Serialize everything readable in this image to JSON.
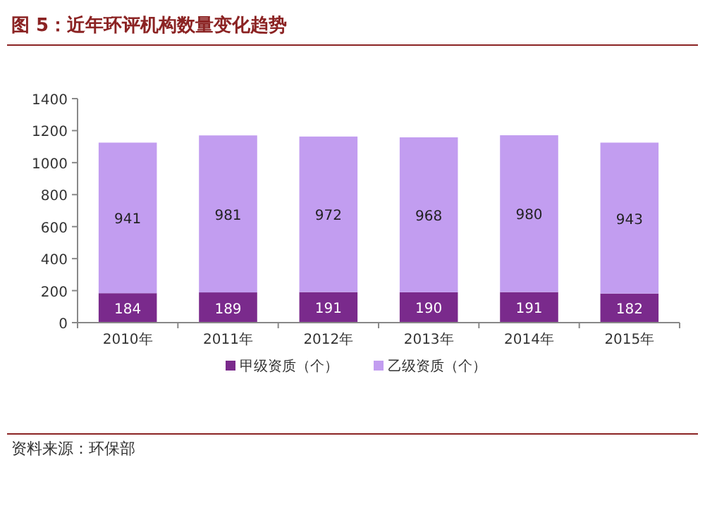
{
  "chart_data": {
    "type": "bar",
    "title": "图 5：近年环评机构数量变化趋势",
    "stacked": true,
    "categories": [
      "2010年",
      "2011年",
      "2012年",
      "2013年",
      "2014年",
      "2015年"
    ],
    "series": [
      {
        "name": "甲级资质（个）",
        "color": "#7a2a8c",
        "values": [
          184,
          189,
          191,
          190,
          191,
          182
        ]
      },
      {
        "name": "乙级资质（个）",
        "color": "#c29df0",
        "values": [
          941,
          981,
          972,
          968,
          980,
          943
        ]
      }
    ],
    "ylim": [
      0,
      1400
    ],
    "yticks": [
      0,
      200,
      400,
      600,
      800,
      1000,
      1200,
      1400
    ],
    "grid": false,
    "legend": "bottom",
    "data_labels": true,
    "annotations": [
      "资料来源：环保部"
    ]
  }
}
